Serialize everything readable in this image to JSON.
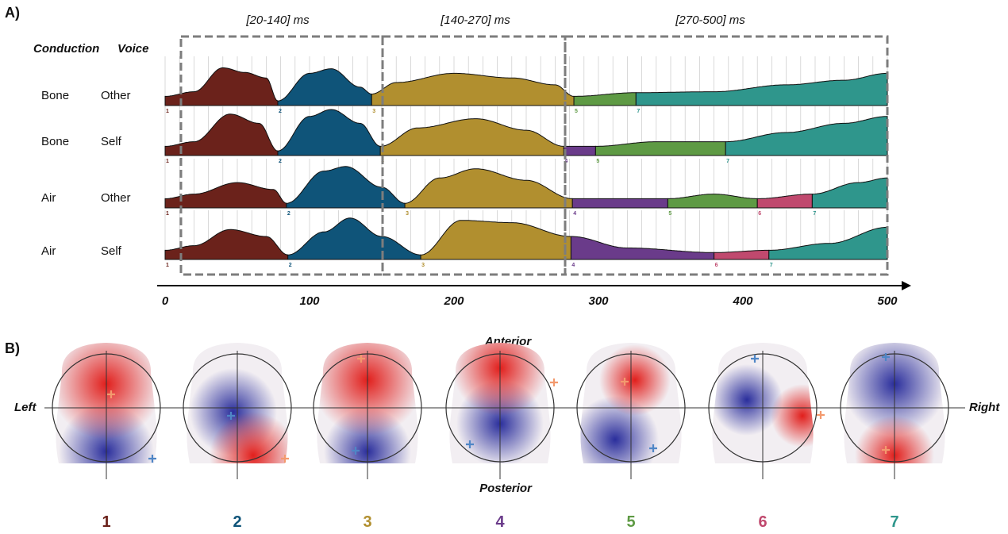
{
  "panel_a_label": "A)",
  "panel_b_label": "B)",
  "col_conduction": "Conduction",
  "col_voice": "Voice",
  "rows": [
    {
      "conduction": "Bone",
      "voice": "Other"
    },
    {
      "conduction": "Bone",
      "voice": "Self"
    },
    {
      "conduction": "Air",
      "voice": "Other"
    },
    {
      "conduction": "Air",
      "voice": "Self"
    }
  ],
  "windows": [
    "[20-140] ms",
    "[140-270] ms",
    "[270-500] ms"
  ],
  "axis_ticks": [
    "0",
    "100",
    "200",
    "300",
    "400",
    "500"
  ],
  "orientation": {
    "anterior": "Anterior",
    "posterior": "Posterior",
    "left": "Left",
    "right": "Right"
  },
  "maps": [
    {
      "label": "1",
      "color": "#6b221b"
    },
    {
      "label": "2",
      "color": "#0f5479"
    },
    {
      "label": "3",
      "color": "#b18f2f"
    },
    {
      "label": "4",
      "color": "#6a3b8a"
    },
    {
      "label": "5",
      "color": "#5e9a44"
    },
    {
      "label": "6",
      "color": "#c0496e"
    },
    {
      "label": "7",
      "color": "#2f968c"
    }
  ],
  "chart_data": {
    "type": "area",
    "x_axis": {
      "min": 0,
      "max": 500,
      "unit": "ms"
    },
    "windows_ms": [
      [
        20,
        140
      ],
      [
        140,
        270
      ],
      [
        270,
        500
      ]
    ],
    "series": [
      {
        "name": "Bone Other",
        "segments": [
          {
            "map": "1",
            "start": 0,
            "end": 78
          },
          {
            "map": "2",
            "start": 78,
            "end": 143
          },
          {
            "map": "3",
            "start": 143,
            "end": 283
          },
          {
            "map": "5",
            "start": 283,
            "end": 326
          },
          {
            "map": "7",
            "start": 326,
            "end": 500
          }
        ]
      },
      {
        "name": "Bone Self",
        "segments": [
          {
            "map": "1",
            "start": 0,
            "end": 78
          },
          {
            "map": "2",
            "start": 78,
            "end": 149
          },
          {
            "map": "3",
            "start": 149,
            "end": 276
          },
          {
            "map": "4",
            "start": 276,
            "end": 298
          },
          {
            "map": "5",
            "start": 298,
            "end": 388
          },
          {
            "map": "7",
            "start": 388,
            "end": 500
          }
        ]
      },
      {
        "name": "Air Other",
        "segments": [
          {
            "map": "1",
            "start": 0,
            "end": 84
          },
          {
            "map": "2",
            "start": 84,
            "end": 166
          },
          {
            "map": "3",
            "start": 166,
            "end": 282
          },
          {
            "map": "4",
            "start": 282,
            "end": 348
          },
          {
            "map": "5",
            "start": 348,
            "end": 410
          },
          {
            "map": "6",
            "start": 410,
            "end": 448
          },
          {
            "map": "7",
            "start": 448,
            "end": 500
          }
        ]
      },
      {
        "name": "Air Self",
        "segments": [
          {
            "map": "1",
            "start": 0,
            "end": 85
          },
          {
            "map": "2",
            "start": 85,
            "end": 177
          },
          {
            "map": "3",
            "start": 177,
            "end": 281
          },
          {
            "map": "4",
            "start": 281,
            "end": 380
          },
          {
            "map": "6",
            "start": 380,
            "end": 418
          },
          {
            "map": "7",
            "start": 418,
            "end": 500
          }
        ]
      }
    ]
  }
}
